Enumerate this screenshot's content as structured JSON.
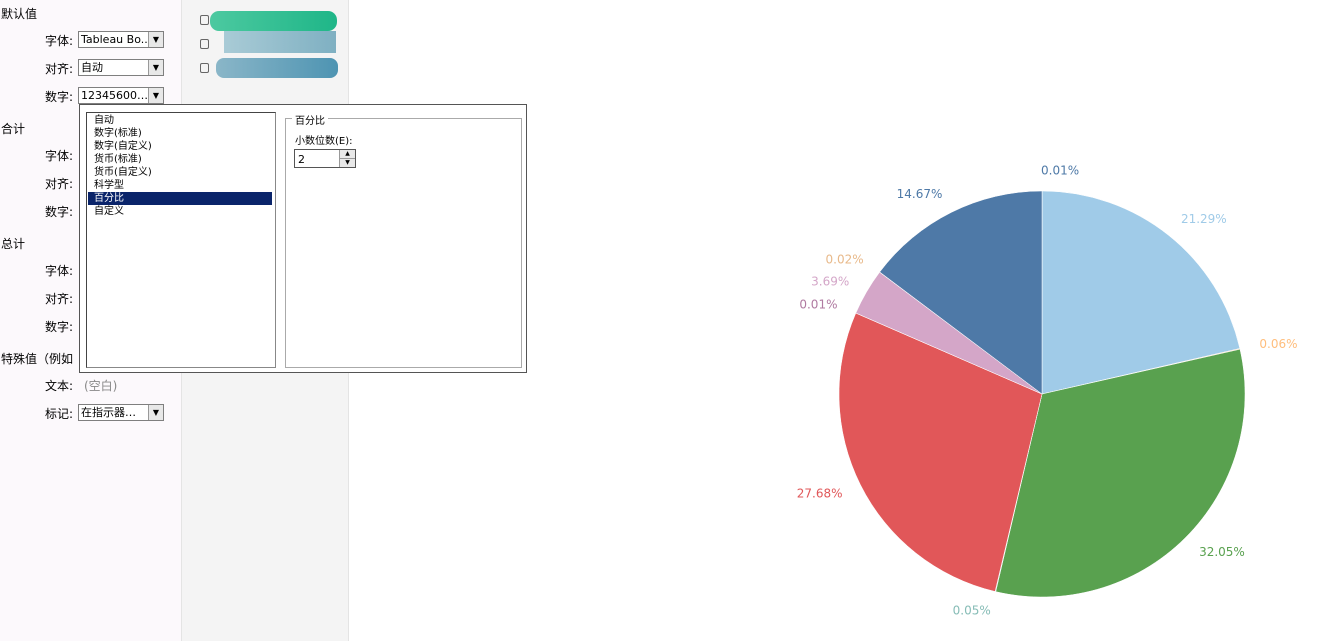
{
  "panel": {
    "sections": [
      {
        "title": "默认值",
        "rows": [
          {
            "label": "字体:",
            "value": "Tableau Bo.."
          },
          {
            "label": "对齐:",
            "value": "自动"
          },
          {
            "label": "数字:",
            "value": "12345600…"
          }
        ]
      },
      {
        "title": "合计",
        "rows": [
          {
            "label": "字体:"
          },
          {
            "label": "对齐:"
          },
          {
            "label": "数字:"
          }
        ]
      },
      {
        "title": "总计",
        "rows": [
          {
            "label": "字体:"
          },
          {
            "label": "对齐:"
          },
          {
            "label": "数字:"
          }
        ]
      },
      {
        "title": "特殊值（例如",
        "rows": [
          {
            "label": "文本:",
            "text": "(空白)"
          },
          {
            "label": "标记:",
            "value": "在指示器…"
          }
        ]
      }
    ]
  },
  "popup": {
    "items": [
      "自动",
      "数字(标准)",
      "数字(自定义)",
      "货币(标准)",
      "货币(自定义)",
      "科学型",
      "百分比",
      "自定义"
    ],
    "selected": 6,
    "group_title": "百分比",
    "decimals_label": "小数位数(E):",
    "decimals": "2"
  },
  "chart_data": {
    "type": "pie",
    "values": [
      0.01,
      21.29,
      0.06,
      32.05,
      0.05,
      27.68,
      0.01,
      3.69,
      0.02,
      14.67
    ],
    "value_labels": [
      "0.01%",
      "21.29%",
      "0.06%",
      "32.05%",
      "0.05%",
      "27.68%",
      "0.01%",
      "3.69%",
      "0.02%",
      "14.67%"
    ],
    "colors": [
      "#4e79a7",
      "#a0cbe8",
      "#ffbe7d",
      "#59a14f",
      "#86bcb6",
      "#e15759",
      "#b07aa1",
      "#d4a6c8",
      "#e8b98a",
      "#4e79a7"
    ]
  }
}
